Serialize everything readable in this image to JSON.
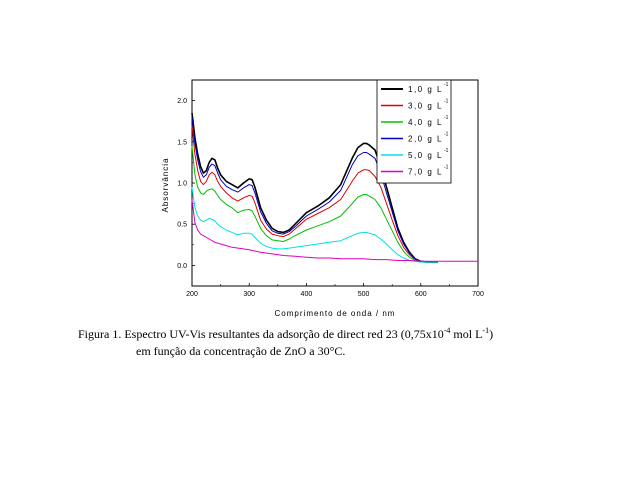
{
  "chart_data": {
    "type": "line",
    "xlabel": "Comprimento de onda / nm",
    "ylabel": "Absorvância",
    "xlim": [
      200,
      700
    ],
    "ylim": [
      -0.25,
      2.25
    ],
    "xticks": [
      200,
      300,
      400,
      500,
      600,
      700
    ],
    "yticks": [
      0.0,
      0.5,
      1.0,
      1.5,
      2.0
    ],
    "xtick_labels": [
      "200",
      "300",
      "400",
      "500",
      "600",
      "700"
    ],
    "ytick_labels": [
      "0.0",
      "0.5",
      "1.0",
      "1.5",
      "2.0"
    ],
    "legend_position": "top-right",
    "grid": false,
    "series": [
      {
        "name": "1,0 g L",
        "sup": "-1",
        "color": "#000000",
        "width": 1.6,
        "x": [
          200,
          205,
          210,
          215,
          220,
          225,
          230,
          235,
          240,
          245,
          250,
          260,
          270,
          280,
          290,
          300,
          305,
          310,
          320,
          330,
          340,
          350,
          360,
          370,
          380,
          400,
          420,
          440,
          460,
          480,
          490,
          500,
          505,
          510,
          520,
          530,
          540,
          550,
          560,
          570,
          580,
          590,
          600,
          610,
          620,
          630
        ],
        "y": [
          1.85,
          1.55,
          1.35,
          1.2,
          1.12,
          1.15,
          1.25,
          1.3,
          1.28,
          1.18,
          1.1,
          1.02,
          0.98,
          0.94,
          1.0,
          1.05,
          1.04,
          0.95,
          0.7,
          0.55,
          0.45,
          0.41,
          0.4,
          0.43,
          0.5,
          0.64,
          0.72,
          0.82,
          0.98,
          1.3,
          1.43,
          1.48,
          1.48,
          1.46,
          1.4,
          1.2,
          0.95,
          0.7,
          0.45,
          0.28,
          0.16,
          0.08,
          0.05,
          0.04,
          0.04,
          0.04
        ]
      },
      {
        "name": "3,0 g L",
        "sup": "-1",
        "color": "#e00000",
        "width": 1.0,
        "x": [
          200,
          205,
          210,
          215,
          220,
          225,
          230,
          235,
          240,
          245,
          250,
          260,
          270,
          280,
          290,
          300,
          305,
          310,
          320,
          330,
          340,
          350,
          360,
          370,
          380,
          400,
          420,
          440,
          460,
          480,
          490,
          500,
          505,
          510,
          520,
          530,
          540,
          550,
          560,
          570,
          580,
          590,
          600,
          610,
          620,
          630
        ],
        "y": [
          1.7,
          1.35,
          1.15,
          1.02,
          0.98,
          1.02,
          1.1,
          1.13,
          1.1,
          1.02,
          0.96,
          0.88,
          0.82,
          0.78,
          0.82,
          0.85,
          0.84,
          0.76,
          0.55,
          0.44,
          0.38,
          0.36,
          0.35,
          0.38,
          0.44,
          0.56,
          0.63,
          0.7,
          0.8,
          1.02,
          1.12,
          1.16,
          1.16,
          1.15,
          1.08,
          0.95,
          0.75,
          0.55,
          0.36,
          0.22,
          0.13,
          0.07,
          0.05,
          0.04,
          0.04,
          0.04
        ]
      },
      {
        "name": "4,0 g L",
        "sup": "-1",
        "color": "#00c000",
        "width": 1.0,
        "x": [
          200,
          205,
          210,
          215,
          220,
          225,
          230,
          235,
          240,
          245,
          250,
          260,
          270,
          280,
          290,
          300,
          305,
          310,
          320,
          330,
          340,
          350,
          360,
          370,
          380,
          400,
          420,
          440,
          460,
          480,
          490,
          500,
          505,
          510,
          520,
          530,
          540,
          550,
          560,
          570,
          580,
          590,
          600,
          610,
          620,
          630
        ],
        "y": [
          1.45,
          1.1,
          0.95,
          0.88,
          0.86,
          0.9,
          0.92,
          0.93,
          0.9,
          0.85,
          0.8,
          0.74,
          0.7,
          0.64,
          0.67,
          0.68,
          0.66,
          0.6,
          0.45,
          0.36,
          0.31,
          0.3,
          0.29,
          0.32,
          0.36,
          0.43,
          0.48,
          0.53,
          0.6,
          0.75,
          0.83,
          0.86,
          0.86,
          0.84,
          0.8,
          0.7,
          0.56,
          0.42,
          0.28,
          0.17,
          0.1,
          0.06,
          0.05,
          0.04,
          0.04,
          0.04
        ]
      },
      {
        "name": "2,0 g L",
        "sup": "-1",
        "color": "#0000c0",
        "width": 1.0,
        "x": [
          200,
          205,
          210,
          215,
          220,
          225,
          230,
          235,
          240,
          245,
          250,
          260,
          270,
          280,
          290,
          300,
          305,
          310,
          320,
          330,
          340,
          350,
          360,
          370,
          380,
          400,
          420,
          440,
          460,
          480,
          490,
          500,
          505,
          510,
          520,
          530,
          540,
          550,
          560,
          570,
          580,
          590,
          600,
          610,
          620,
          630
        ],
        "y": [
          1.8,
          1.48,
          1.28,
          1.14,
          1.07,
          1.1,
          1.19,
          1.23,
          1.21,
          1.12,
          1.04,
          0.96,
          0.92,
          0.89,
          0.94,
          0.98,
          0.97,
          0.88,
          0.65,
          0.51,
          0.42,
          0.39,
          0.38,
          0.41,
          0.47,
          0.6,
          0.68,
          0.77,
          0.91,
          1.22,
          1.33,
          1.37,
          1.37,
          1.35,
          1.3,
          1.12,
          0.88,
          0.65,
          0.42,
          0.26,
          0.15,
          0.08,
          0.05,
          0.04,
          0.04,
          0.04
        ]
      },
      {
        "name": "5,0 g L",
        "sup": "-1",
        "color": "#00e0e0",
        "width": 1.0,
        "x": [
          200,
          205,
          210,
          215,
          220,
          225,
          230,
          235,
          240,
          245,
          250,
          260,
          270,
          280,
          290,
          300,
          305,
          310,
          320,
          330,
          340,
          350,
          360,
          370,
          380,
          400,
          420,
          440,
          460,
          480,
          490,
          500,
          505,
          510,
          520,
          530,
          540,
          550,
          560,
          570,
          580,
          590,
          600,
          610,
          620,
          630
        ],
        "y": [
          0.95,
          0.7,
          0.6,
          0.55,
          0.53,
          0.55,
          0.57,
          0.56,
          0.54,
          0.5,
          0.47,
          0.43,
          0.4,
          0.37,
          0.39,
          0.39,
          0.38,
          0.34,
          0.27,
          0.23,
          0.21,
          0.2,
          0.2,
          0.21,
          0.22,
          0.24,
          0.26,
          0.28,
          0.3,
          0.36,
          0.39,
          0.4,
          0.4,
          0.39,
          0.37,
          0.32,
          0.26,
          0.19,
          0.13,
          0.09,
          0.06,
          0.05,
          0.04,
          0.04,
          0.04,
          0.04
        ]
      },
      {
        "name": "7,0 g L",
        "sup": "-1",
        "color": "#e000c0",
        "width": 1.0,
        "x": [
          200,
          205,
          210,
          215,
          220,
          230,
          240,
          250,
          260,
          270,
          280,
          290,
          300,
          320,
          340,
          360,
          380,
          400,
          420,
          440,
          460,
          480,
          500,
          520,
          540,
          560,
          580,
          600,
          620,
          640,
          660,
          680,
          700
        ],
        "y": [
          0.8,
          0.52,
          0.43,
          0.38,
          0.36,
          0.32,
          0.28,
          0.26,
          0.24,
          0.22,
          0.21,
          0.2,
          0.19,
          0.16,
          0.14,
          0.12,
          0.11,
          0.1,
          0.09,
          0.09,
          0.08,
          0.08,
          0.08,
          0.07,
          0.07,
          0.06,
          0.06,
          0.05,
          0.05,
          0.05,
          0.05,
          0.05,
          0.05
        ]
      }
    ]
  },
  "caption": {
    "line1_text": "Figura 1. Espectro UV-Vis resultantes da adsorção de direct red 23 (0,75x10",
    "line1_sup1": "-4",
    "line1_mid": " mol L",
    "line1_sup2": "-1",
    "line1_end": ")",
    "line2": "em função da concentração de ZnO a 30°C."
  }
}
